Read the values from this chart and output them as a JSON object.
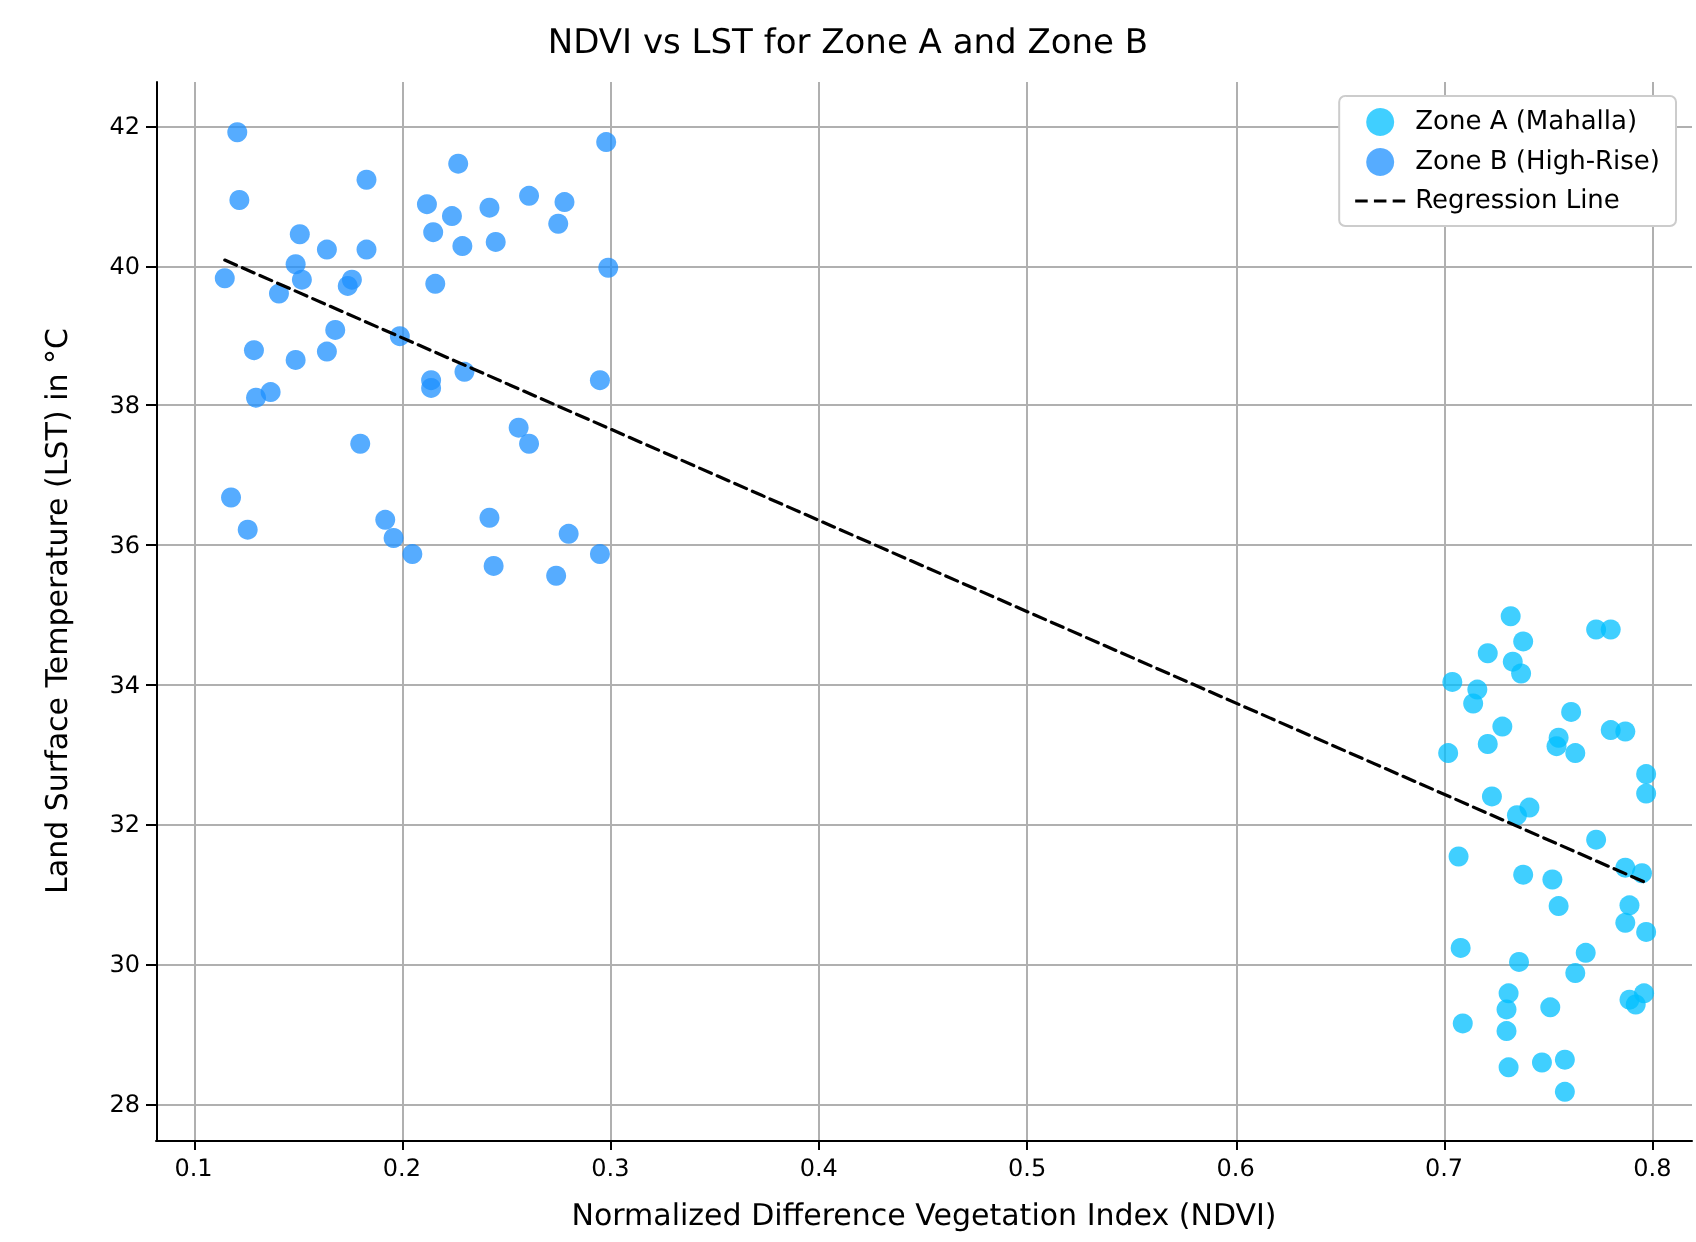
{
  "chart_data": {
    "type": "scatter",
    "title": "NDVI vs LST for Zone A and Zone B",
    "xlabel": "Normalized Difference Vegetation Index (NDVI)",
    "ylabel": "Land Surface Temperature (LST) in °C",
    "xlim": [
      0.082,
      0.819
    ],
    "xticks": [
      0.1,
      0.2,
      0.3,
      0.4,
      0.5,
      0.6,
      0.7,
      0.8
    ],
    "ylim": [
      27.48,
      42.63
    ],
    "yticks": [
      28,
      30,
      32,
      34,
      36,
      38,
      40,
      42
    ],
    "grid": true,
    "legend": "top right",
    "marker": "circle",
    "series": [
      {
        "name": "Zone A (Mahalla)",
        "color": "#00bfff",
        "x": [
          0.732,
          0.773,
          0.78,
          0.721,
          0.738,
          0.733,
          0.737,
          0.704,
          0.716,
          0.714,
          0.761,
          0.728,
          0.721,
          0.755,
          0.754,
          0.763,
          0.78,
          0.787,
          0.702,
          0.797,
          0.797,
          0.723,
          0.741,
          0.735,
          0.773,
          0.707,
          0.738,
          0.752,
          0.755,
          0.787,
          0.795,
          0.789,
          0.787,
          0.797,
          0.708,
          0.736,
          0.768,
          0.763,
          0.731,
          0.73,
          0.73,
          0.751,
          0.789,
          0.792,
          0.796,
          0.709,
          0.731,
          0.747,
          0.758,
          0.758
        ],
        "values": [
          34.98,
          34.79,
          34.79,
          34.45,
          34.62,
          34.33,
          34.16,
          34.04,
          33.93,
          33.73,
          33.61,
          33.4,
          33.15,
          33.24,
          33.12,
          33.02,
          33.35,
          33.33,
          33.02,
          32.72,
          32.44,
          32.4,
          32.24,
          32.13,
          31.78,
          31.54,
          31.28,
          31.21,
          30.83,
          31.38,
          31.3,
          30.84,
          30.59,
          30.46,
          30.23,
          30.03,
          30.16,
          29.87,
          29.58,
          29.35,
          29.04,
          29.38,
          29.49,
          29.42,
          29.58,
          29.15,
          28.52,
          28.59,
          28.63,
          28.17
        ]
      },
      {
        "name": "Zone B (High-Rise)",
        "color": "#1e90ff",
        "x": [
          0.121,
          0.122,
          0.183,
          0.227,
          0.298,
          0.299,
          0.212,
          0.224,
          0.242,
          0.261,
          0.278,
          0.275,
          0.215,
          0.229,
          0.245,
          0.151,
          0.164,
          0.183,
          0.149,
          0.152,
          0.115,
          0.141,
          0.174,
          0.176,
          0.216,
          0.199,
          0.168,
          0.149,
          0.129,
          0.164,
          0.214,
          0.214,
          0.23,
          0.13,
          0.137,
          0.295,
          0.256,
          0.261,
          0.18,
          0.118,
          0.126,
          0.192,
          0.196,
          0.205,
          0.242,
          0.28,
          0.244,
          0.274,
          0.295
        ],
        "values": [
          41.91,
          40.94,
          41.23,
          41.46,
          41.77,
          39.97,
          40.88,
          40.71,
          40.83,
          41.0,
          40.91,
          40.6,
          40.48,
          40.28,
          40.34,
          40.45,
          40.23,
          40.23,
          40.02,
          39.8,
          39.82,
          39.6,
          39.71,
          39.8,
          39.74,
          38.99,
          39.08,
          38.65,
          38.79,
          38.77,
          38.36,
          38.25,
          38.48,
          38.11,
          38.19,
          38.36,
          37.68,
          37.45,
          37.45,
          36.68,
          36.22,
          36.36,
          36.1,
          35.87,
          36.39,
          36.16,
          35.7,
          35.56,
          35.87
        ]
      },
      {
        "name": "Regression Line",
        "type": "line",
        "color": "#000000",
        "line_style": "dashed",
        "marker": "none",
        "x": [
          0.115,
          0.798
        ],
        "values": [
          40.08,
          31.15
        ]
      }
    ]
  }
}
